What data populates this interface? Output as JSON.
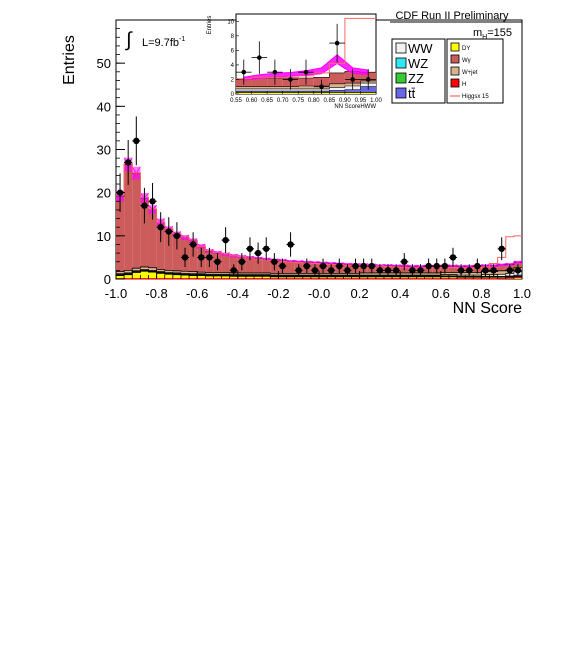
{
  "chart_data": {
    "type": "bar",
    "stacked": true,
    "title": "CDF Run II Preliminary",
    "xlabel": "NN Score",
    "ylabel": "Entries",
    "xlim": [
      -1.0,
      1.0
    ],
    "ylim": [
      0,
      60
    ],
    "xticks": [
      "-1.0",
      "-0.8",
      "-0.6",
      "-0.4",
      "-0.2",
      "-0.0",
      "0.2",
      "0.4",
      "0.6",
      "0.8",
      "1.0"
    ],
    "yticks": [
      "0",
      "10",
      "20",
      "30",
      "40",
      "50"
    ],
    "grid": false,
    "lumi_label": "L=9.7fb",
    "lumi_exp": "-1",
    "mass_label": "m",
    "mass_sub": "H",
    "mass_value": "=155",
    "legend": {
      "placement": "top-right",
      "left_entries": [
        {
          "label": "WW",
          "color": "#f2f2f2"
        },
        {
          "label": "WZ",
          "color": "#33e6f2"
        },
        {
          "label": "ZZ",
          "color": "#33cc33"
        },
        {
          "label": "tt̄",
          "color": "#6666e6"
        }
      ],
      "right_entries": [
        {
          "label": "DY",
          "color": "#ffff00"
        },
        {
          "label": "Wγ",
          "color": "#cc5c5c"
        },
        {
          "label": "W+jet",
          "color": "#d9b38c"
        },
        {
          "label": "H",
          "color": "#ff0000"
        },
        {
          "label": "Higgsx 15",
          "color": "#ff6666"
        }
      ]
    },
    "bin_edges": [
      -1.0,
      -0.96,
      -0.92,
      -0.88,
      -0.84,
      -0.8,
      -0.76,
      -0.72,
      -0.68,
      -0.64,
      -0.6,
      -0.56,
      -0.52,
      -0.48,
      -0.44,
      -0.4,
      -0.36,
      -0.32,
      -0.28,
      -0.24,
      -0.2,
      -0.16,
      -0.12,
      -0.08,
      -0.04,
      0.0,
      0.04,
      0.08,
      0.12,
      0.16,
      0.2,
      0.24,
      0.28,
      0.32,
      0.36,
      0.4,
      0.44,
      0.48,
      0.52,
      0.56,
      0.6,
      0.64,
      0.68,
      0.72,
      0.76,
      0.8,
      0.84,
      0.88,
      0.92,
      0.96,
      1.0
    ],
    "stack_order": [
      "DY",
      "WZ",
      "ZZ",
      "tt̄",
      "WW",
      "W+jet",
      "Wγ"
    ],
    "stack": [
      {
        "name": "DY",
        "color": "#ffff00",
        "values": [
          0.8,
          1.0,
          1.5,
          1.8,
          1.6,
          1.3,
          1.1,
          1.0,
          0.9,
          0.8,
          0.8,
          0.7,
          0.7,
          0.7,
          0.6,
          0.6,
          0.6,
          0.6,
          0.6,
          0.5,
          0.5,
          0.5,
          0.5,
          0.5,
          0.5,
          0.5,
          0.5,
          0.5,
          0.5,
          0.5,
          0.5,
          0.5,
          0.5,
          0.5,
          0.5,
          0.5,
          0.5,
          0.5,
          0.5,
          0.5,
          0.5,
          0.5,
          0.4,
          0.4,
          0.4,
          0.4,
          0.4,
          0.4,
          0.4,
          0.4
        ]
      },
      {
        "name": "WZ",
        "color": "#33e6f2",
        "values": [
          0.1,
          0.1,
          0.1,
          0.1,
          0.1,
          0.1,
          0.1,
          0.1,
          0.1,
          0.1,
          0.1,
          0.1,
          0.1,
          0.1,
          0.1,
          0.1,
          0.1,
          0.1,
          0.1,
          0.1,
          0.1,
          0.1,
          0.1,
          0.1,
          0.1,
          0.1,
          0.1,
          0.1,
          0.1,
          0.1,
          0.1,
          0.1,
          0.1,
          0.1,
          0.1,
          0.1,
          0.1,
          0.1,
          0.1,
          0.1,
          0.1,
          0.1,
          0.1,
          0.1,
          0.1,
          0.1,
          0.1,
          0.1,
          0.1,
          0.1
        ]
      },
      {
        "name": "ZZ",
        "color": "#33cc33",
        "values": [
          0.1,
          0.1,
          0.1,
          0.1,
          0.1,
          0.1,
          0.1,
          0.1,
          0.1,
          0.1,
          0.1,
          0.1,
          0.1,
          0.1,
          0.1,
          0.1,
          0.1,
          0.1,
          0.1,
          0.1,
          0.1,
          0.1,
          0.1,
          0.1,
          0.1,
          0.1,
          0.1,
          0.1,
          0.1,
          0.1,
          0.1,
          0.1,
          0.1,
          0.1,
          0.1,
          0.1,
          0.1,
          0.1,
          0.1,
          0.1,
          0.1,
          0.1,
          0.1,
          0.1,
          0.1,
          0.1,
          0.1,
          0.1,
          0.1,
          0.1
        ]
      },
      {
        "name": "tt̄",
        "color": "#6666e6",
        "values": [
          0.0,
          0.0,
          0.0,
          0.0,
          0.0,
          0.0,
          0.0,
          0.0,
          0.0,
          0.0,
          0.0,
          0.0,
          0.0,
          0.0,
          0.0,
          0.0,
          0.0,
          0.0,
          0.0,
          0.0,
          0.0,
          0.0,
          0.0,
          0.0,
          0.0,
          0.0,
          0.0,
          0.0,
          0.0,
          0.0,
          0.0,
          0.0,
          0.0,
          0.0,
          0.0,
          0.0,
          0.0,
          0.0,
          0.0,
          0.0,
          0.0,
          0.0,
          0.0,
          0.0,
          0.0,
          0.0,
          0.0,
          0.0,
          0.1,
          0.3
        ]
      },
      {
        "name": "WW",
        "color": "#f2f2f2",
        "values": [
          0.2,
          0.2,
          0.2,
          0.2,
          0.2,
          0.2,
          0.2,
          0.2,
          0.2,
          0.2,
          0.2,
          0.2,
          0.2,
          0.2,
          0.2,
          0.2,
          0.2,
          0.2,
          0.2,
          0.2,
          0.2,
          0.2,
          0.2,
          0.2,
          0.2,
          0.2,
          0.2,
          0.2,
          0.2,
          0.2,
          0.2,
          0.2,
          0.2,
          0.2,
          0.2,
          0.2,
          0.2,
          0.2,
          0.2,
          0.2,
          0.3,
          0.3,
          0.3,
          0.3,
          0.3,
          0.4,
          0.4,
          0.5,
          0.6,
          0.8
        ]
      },
      {
        "name": "W+jet",
        "color": "#d9b38c",
        "values": [
          0.5,
          0.6,
          0.6,
          0.6,
          0.6,
          0.5,
          0.5,
          0.5,
          0.5,
          0.5,
          0.4,
          0.4,
          0.4,
          0.4,
          0.4,
          0.4,
          0.4,
          0.4,
          0.4,
          0.4,
          0.4,
          0.4,
          0.4,
          0.4,
          0.4,
          0.4,
          0.4,
          0.4,
          0.4,
          0.4,
          0.5,
          0.5,
          0.5,
          0.5,
          0.5,
          0.5,
          0.5,
          0.5,
          0.5,
          0.5,
          0.5,
          0.5,
          0.6,
          0.6,
          0.6,
          0.7,
          0.7,
          0.8,
          0.8,
          0.9
        ]
      },
      {
        "name": "Wγ",
        "color": "#cc5c5c",
        "values": [
          17.5,
          24.5,
          22.0,
          16.0,
          13.5,
          11.0,
          9.5,
          8.5,
          7.8,
          7.2,
          6.0,
          5.0,
          4.6,
          4.2,
          4.0,
          3.8,
          3.6,
          3.4,
          3.2,
          3.1,
          3.0,
          2.8,
          2.7,
          2.6,
          2.5,
          2.4,
          2.3,
          2.2,
          2.1,
          2.0,
          1.9,
          1.8,
          1.7,
          1.7,
          1.6,
          1.6,
          1.5,
          1.5,
          1.5,
          1.5,
          1.5,
          1.5,
          1.4,
          1.4,
          1.4,
          1.4,
          1.4,
          1.4,
          1.3,
          1.3
        ]
      }
    ],
    "signal_h": {
      "name": "H",
      "color": "#ff0000",
      "values": [
        0.05,
        0.05,
        0.05,
        0.05,
        0.05,
        0.05,
        0.05,
        0.05,
        0.05,
        0.05,
        0.05,
        0.05,
        0.05,
        0.05,
        0.05,
        0.05,
        0.05,
        0.05,
        0.05,
        0.05,
        0.05,
        0.05,
        0.05,
        0.05,
        0.05,
        0.05,
        0.05,
        0.05,
        0.05,
        0.05,
        0.05,
        0.05,
        0.05,
        0.05,
        0.05,
        0.05,
        0.05,
        0.05,
        0.05,
        0.05,
        0.05,
        0.05,
        0.05,
        0.05,
        0.05,
        0.05,
        0.05,
        0.1,
        0.2,
        0.3
      ]
    },
    "signal_x15": {
      "name": "Higgsx 15",
      "color": "#ff6666",
      "values": [
        19.5,
        26.8,
        24.6,
        18.9,
        16.2,
        13.2,
        11.6,
        10.5,
        9.7,
        9.0,
        7.6,
        6.6,
        6.1,
        5.8,
        5.4,
        5.2,
        4.9,
        4.6,
        4.4,
        4.2,
        4.1,
        3.9,
        3.8,
        3.7,
        3.6,
        3.5,
        3.4,
        3.3,
        3.2,
        3.1,
        3.2,
        3.1,
        3.0,
        2.9,
        2.8,
        2.7,
        2.6,
        2.6,
        2.6,
        2.6,
        2.7,
        2.7,
        2.6,
        2.6,
        2.6,
        2.8,
        3.6,
        5.0,
        9.8,
        10.0
      ]
    },
    "uncertainty_band": {
      "color": "#ff00ff",
      "halfwidth": [
        1.2,
        1.6,
        1.5,
        1.1,
        1.0,
        0.8,
        0.7,
        0.6,
        0.6,
        0.5,
        0.5,
        0.4,
        0.4,
        0.4,
        0.4,
        0.3,
        0.3,
        0.3,
        0.3,
        0.3,
        0.3,
        0.3,
        0.3,
        0.3,
        0.3,
        0.3,
        0.3,
        0.3,
        0.3,
        0.3,
        0.3,
        0.3,
        0.3,
        0.3,
        0.3,
        0.3,
        0.3,
        0.3,
        0.3,
        0.3,
        0.3,
        0.3,
        0.3,
        0.3,
        0.3,
        0.3,
        0.3,
        0.3,
        0.3,
        0.3
      ]
    },
    "data_points": {
      "x": [
        -0.98,
        -0.94,
        -0.9,
        -0.86,
        -0.82,
        -0.78,
        -0.74,
        -0.7,
        -0.66,
        -0.62,
        -0.58,
        -0.54,
        -0.5,
        -0.46,
        -0.42,
        -0.38,
        -0.34,
        -0.3,
        -0.26,
        -0.22,
        -0.18,
        -0.14,
        -0.1,
        -0.06,
        -0.02,
        0.02,
        0.06,
        0.1,
        0.14,
        0.18,
        0.22,
        0.26,
        0.3,
        0.34,
        0.38,
        0.42,
        0.46,
        0.5,
        0.54,
        0.58,
        0.62,
        0.66,
        0.7,
        0.74,
        0.78,
        0.82,
        0.86,
        0.9,
        0.94,
        0.98
      ],
      "y": [
        20,
        27,
        32,
        17,
        18,
        12,
        11,
        10,
        5,
        8,
        5,
        5,
        4,
        9,
        2,
        4,
        7,
        6,
        7,
        4,
        3,
        8,
        2,
        3,
        2,
        3,
        2,
        3,
        2,
        3,
        3,
        3,
        2,
        2,
        2,
        4,
        2,
        2,
        3,
        3,
        3,
        5,
        2,
        2,
        3,
        2,
        2,
        7,
        2,
        2
      ]
    },
    "inset": {
      "xlabel": "NN ScoreHWW",
      "ylabel": "Entries",
      "xlim": [
        0.55,
        1.0
      ],
      "ylim": [
        0,
        11
      ],
      "xticks": [
        "0.55",
        "0.60",
        "0.65",
        "0.70",
        "0.75",
        "0.80",
        "0.85",
        "0.90",
        "0.95",
        "1.00"
      ],
      "yticks": [
        "0",
        "2",
        "4",
        "6",
        "8",
        "10"
      ],
      "bin_edges": [
        0.55,
        0.6,
        0.65,
        0.7,
        0.75,
        0.8,
        0.85,
        0.9,
        0.95,
        1.0
      ],
      "stack": [
        {
          "name": "DY",
          "color": "#ffff00",
          "values": [
            0.2,
            0.2,
            0.2,
            0.2,
            0.2,
            0.2,
            0.2,
            0.2,
            0.2
          ]
        },
        {
          "name": "tt̄",
          "color": "#6666e6",
          "values": [
            0.2,
            0.2,
            0.2,
            0.2,
            0.2,
            0.2,
            0.3,
            0.4,
            0.8
          ]
        },
        {
          "name": "WW",
          "color": "#f2f2f2",
          "values": [
            0.3,
            0.3,
            0.3,
            0.3,
            0.3,
            0.3,
            0.4,
            0.5,
            0.5
          ]
        },
        {
          "name": "W+jet",
          "color": "#d9b38c",
          "values": [
            0.3,
            0.3,
            0.3,
            0.3,
            0.4,
            0.4,
            0.5,
            0.4,
            0.3
          ]
        },
        {
          "name": "Wγ",
          "color": "#cc5c5c",
          "values": [
            1.0,
            1.2,
            1.2,
            1.2,
            1.1,
            1.2,
            1.5,
            1.6,
            1.2
          ]
        }
      ],
      "signal_x15": {
        "name": "Higgsx 15",
        "color": "#ff6666",
        "values": [
          2.1,
          2.3,
          2.3,
          2.3,
          2.5,
          2.9,
          4.2,
          10.4,
          10.4
        ]
      },
      "band": {
        "color": "#ff00ff",
        "x": [
          0.55,
          0.6,
          0.65,
          0.7,
          0.75,
          0.8,
          0.85,
          0.9,
          0.95
        ],
        "y": [
          2.1,
          2.4,
          2.6,
          2.7,
          2.9,
          3.2,
          4.8,
          3.2,
          3.0
        ],
        "halfwidth": [
          0.2,
          0.25,
          0.25,
          0.25,
          0.3,
          0.4,
          0.6,
          0.4,
          0.3
        ]
      },
      "data_points": {
        "x": [
          0.575,
          0.625,
          0.675,
          0.725,
          0.775,
          0.825,
          0.875,
          0.925,
          0.975
        ],
        "y": [
          3,
          5,
          3,
          2,
          3,
          1,
          7,
          2,
          2
        ]
      }
    }
  }
}
